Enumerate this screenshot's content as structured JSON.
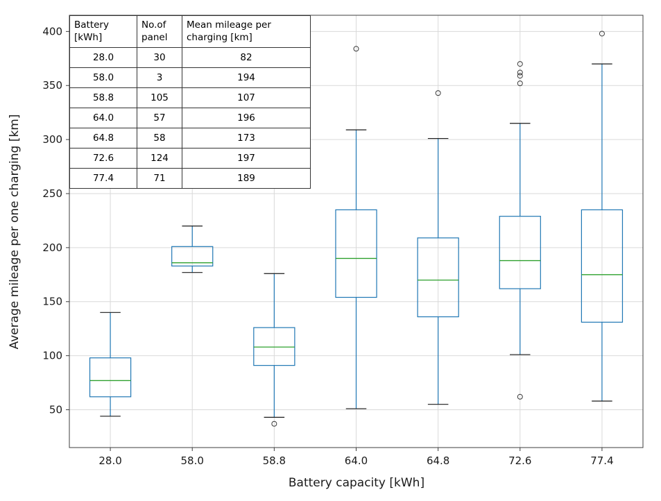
{
  "chart_data": {
    "type": "boxplot",
    "title": "",
    "xlabel": "Battery capacity [kWh]",
    "ylabel": "Average mileage per one charging [km]",
    "categories": [
      "28.0",
      "58.0",
      "58.8",
      "64.0",
      "64.8",
      "72.6",
      "77.4"
    ],
    "ylim": [
      15,
      415
    ],
    "yticks": [
      50,
      100,
      150,
      200,
      250,
      300,
      350,
      400
    ],
    "grid": true,
    "legend": "none",
    "colors": {
      "box": "#1f77b4",
      "whisker": "#1f77b4",
      "median": "#2ca02c",
      "cap": "#1a1a1a",
      "flier": "#3a3a3a",
      "grid": "#d9d9d9",
      "frame": "#3c3c3c"
    },
    "boxes": [
      {
        "category": "28.0",
        "whisker_low": 44,
        "q1": 62,
        "median": 77,
        "q3": 98,
        "whisker_high": 140,
        "outliers": []
      },
      {
        "category": "58.0",
        "whisker_low": 177,
        "q1": 183,
        "median": 186,
        "q3": 201,
        "whisker_high": 220,
        "outliers": []
      },
      {
        "category": "58.8",
        "whisker_low": 43,
        "q1": 91,
        "median": 108,
        "q3": 126,
        "whisker_high": 176,
        "outliers": [
          37
        ]
      },
      {
        "category": "64.0",
        "whisker_low": 51,
        "q1": 154,
        "median": 190,
        "q3": 235,
        "whisker_high": 309,
        "outliers": [
          384
        ]
      },
      {
        "category": "64.8",
        "whisker_low": 55,
        "q1": 136,
        "median": 170,
        "q3": 209,
        "whisker_high": 301,
        "outliers": [
          343
        ]
      },
      {
        "category": "72.6",
        "whisker_low": 101,
        "q1": 162,
        "median": 188,
        "q3": 229,
        "whisker_high": 315,
        "outliers": [
          62,
          352,
          359,
          362,
          370
        ]
      },
      {
        "category": "77.4",
        "whisker_low": 58,
        "q1": 131,
        "median": 175,
        "q3": 235,
        "whisker_high": 370,
        "outliers": [
          398
        ]
      }
    ]
  },
  "inset_table": {
    "headers": [
      "Battery\n[kWh]",
      "No.of\npanel",
      "Mean mileage per\ncharging [km]"
    ],
    "rows": [
      [
        "28.0",
        "30",
        "82"
      ],
      [
        "58.0",
        "3",
        "194"
      ],
      [
        "58.8",
        "105",
        "107"
      ],
      [
        "64.0",
        "57",
        "196"
      ],
      [
        "64.8",
        "58",
        "173"
      ],
      [
        "72.6",
        "124",
        "197"
      ],
      [
        "77.4",
        "71",
        "189"
      ]
    ]
  }
}
